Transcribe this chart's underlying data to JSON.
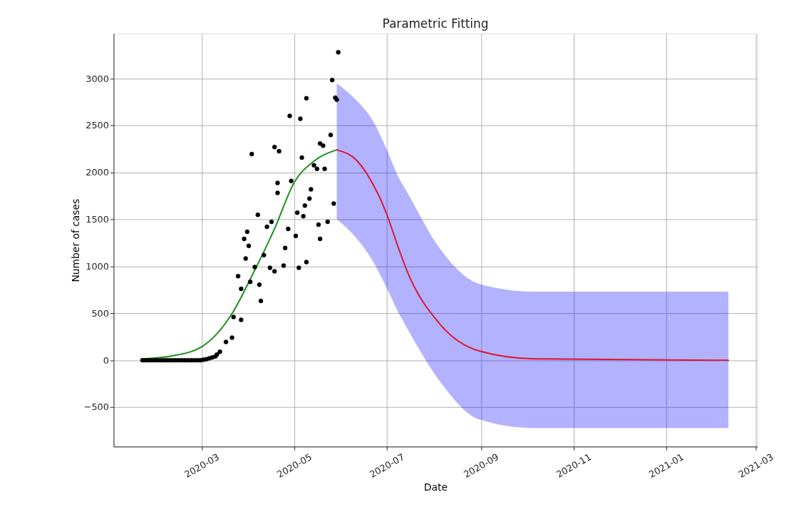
{
  "chart_data": {
    "type": "scatter",
    "title": "Parametric Fitting",
    "xlabel": "Date",
    "ylabel": "Number of cases",
    "xlim": [
      "2020-01-03",
      "2021-03-02"
    ],
    "ylim": [
      -920,
      3480
    ],
    "xticks": [
      "2020-03",
      "2020-05",
      "2020-07",
      "2020-09",
      "2020-11",
      "2021-01",
      "2021-03"
    ],
    "yticks": [
      -500,
      0,
      500,
      1000,
      1500,
      2000,
      2500,
      3000
    ],
    "grid": true,
    "series": [
      {
        "marker": "circle",
        "color": "#000000",
        "x": [
          "2020-01-22",
          "2020-01-24",
          "2020-01-26",
          "2020-01-28",
          "2020-01-30",
          "2020-02-01",
          "2020-02-03",
          "2020-02-05",
          "2020-02-07",
          "2020-02-09",
          "2020-02-11",
          "2020-02-13",
          "2020-02-15",
          "2020-02-17",
          "2020-02-19",
          "2020-02-21",
          "2020-02-23",
          "2020-02-25",
          "2020-02-27",
          "2020-02-29",
          "2020-03-02",
          "2020-03-04",
          "2020-03-06",
          "2020-03-08",
          "2020-03-10",
          "2020-03-11",
          "2020-03-13",
          "2020-03-17",
          "2020-03-21",
          "2020-03-22",
          "2020-03-25",
          "2020-03-27",
          "2020-03-27",
          "2020-03-29",
          "2020-03-30",
          "2020-03-31",
          "2020-04-01",
          "2020-04-02",
          "2020-04-03",
          "2020-04-05",
          "2020-04-07",
          "2020-04-08",
          "2020-04-09",
          "2020-04-11",
          "2020-04-13",
          "2020-04-15",
          "2020-04-16",
          "2020-04-18",
          "2020-04-18",
          "2020-04-20",
          "2020-04-20",
          "2020-04-21",
          "2020-04-24",
          "2020-04-25",
          "2020-04-27",
          "2020-04-28",
          "2020-04-29",
          "2020-05-02",
          "2020-05-03",
          "2020-05-04",
          "2020-05-05",
          "2020-05-06",
          "2020-05-07",
          "2020-05-08",
          "2020-05-09",
          "2020-05-09",
          "2020-05-11",
          "2020-05-12",
          "2020-05-14",
          "2020-05-16",
          "2020-05-17",
          "2020-05-18",
          "2020-05-18",
          "2020-05-20",
          "2020-05-21",
          "2020-05-23",
          "2020-05-25",
          "2020-05-26",
          "2020-05-27",
          "2020-05-28",
          "2020-05-29",
          "2020-05-30"
        ],
        "values": [
          0,
          0,
          0,
          0,
          0,
          0,
          0,
          0,
          0,
          0,
          0,
          0,
          0,
          0,
          0,
          0,
          0,
          0,
          0,
          0,
          5,
          10,
          20,
          30,
          40,
          60,
          90,
          195,
          240,
          460,
          895,
          430,
          760,
          1293,
          1083,
          1368,
          1218,
          835,
          2196,
          993,
          1549,
          805,
          632,
          1120,
          1421,
          985,
          1474,
          947,
          2271,
          1888,
          1782,
          2226,
          1008,
          1196,
          1399,
          2602,
          1910,
          1324,
          1572,
          985,
          2572,
          2158,
          1534,
          1647,
          1045,
          2790,
          1722,
          1820,
          2076,
          2038,
          1444,
          1293,
          2309,
          2286,
          2038,
          1474,
          2399,
          2985,
          1669,
          2797,
          2775,
          3280
        ]
      },
      {
        "type": "line",
        "color": "#1a8f1a",
        "x": [
          "2020-01-22",
          "2020-02-10",
          "2020-03-01",
          "2020-03-21",
          "2020-04-03",
          "2020-04-18",
          "2020-05-01",
          "2020-05-14",
          "2020-05-29"
        ],
        "values": [
          15,
          45,
          143,
          496,
          895,
          1399,
          1895,
          2121,
          2241
        ]
      },
      {
        "type": "line",
        "color": "#e0142c",
        "x": [
          "2020-05-29",
          "2020-06-12",
          "2020-06-21",
          "2020-06-30",
          "2020-07-09",
          "2020-07-14",
          "2020-08-05",
          "2020-08-31",
          "2020-10-06",
          "2021-02-11"
        ],
        "values": [
          2241,
          2113,
          1900,
          1594,
          1180,
          963,
          384,
          98,
          15,
          0
        ],
        "lower": [
          1504,
          1280,
          1075,
          800,
          496,
          350,
          -226,
          -632,
          -722,
          -722
        ],
        "upper": [
          2948,
          2750,
          2572,
          2280,
          1940,
          1800,
          1188,
          812,
          730,
          730
        ]
      }
    ]
  }
}
